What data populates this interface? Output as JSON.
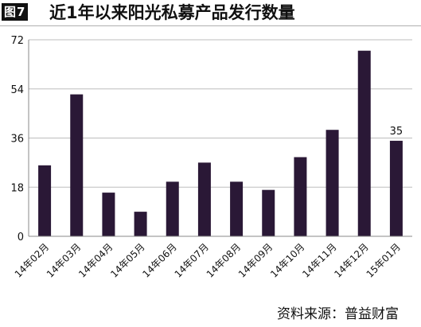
{
  "header": {
    "figure_label": "图7",
    "title": "近1年以来阳光私募产品发行数量"
  },
  "source": "资料来源：普益财富",
  "colors": {
    "bar": "#2a1836",
    "axis": "#888888",
    "grid": "#bdbdbd",
    "text": "#111111"
  },
  "chart_data": {
    "type": "bar",
    "categories": [
      "14年02月",
      "14年03月",
      "14年04月",
      "14年05月",
      "14年06月",
      "14年07月",
      "14年08月",
      "14年09月",
      "14年10月",
      "14年11月",
      "14年12月",
      "15年01月"
    ],
    "values": [
      26,
      52,
      16,
      9,
      20,
      27,
      20,
      17,
      29,
      39,
      68,
      35
    ],
    "ylim": [
      0,
      72
    ],
    "yticks": [
      "0",
      "18",
      "36",
      "54",
      "72"
    ],
    "data_labels": [
      "",
      "",
      "",
      "",
      "",
      "",
      "",
      "",
      "",
      "",
      "",
      "35"
    ],
    "grid": "horizontal",
    "title": "近1年以来阳光私募产品发行数量"
  }
}
